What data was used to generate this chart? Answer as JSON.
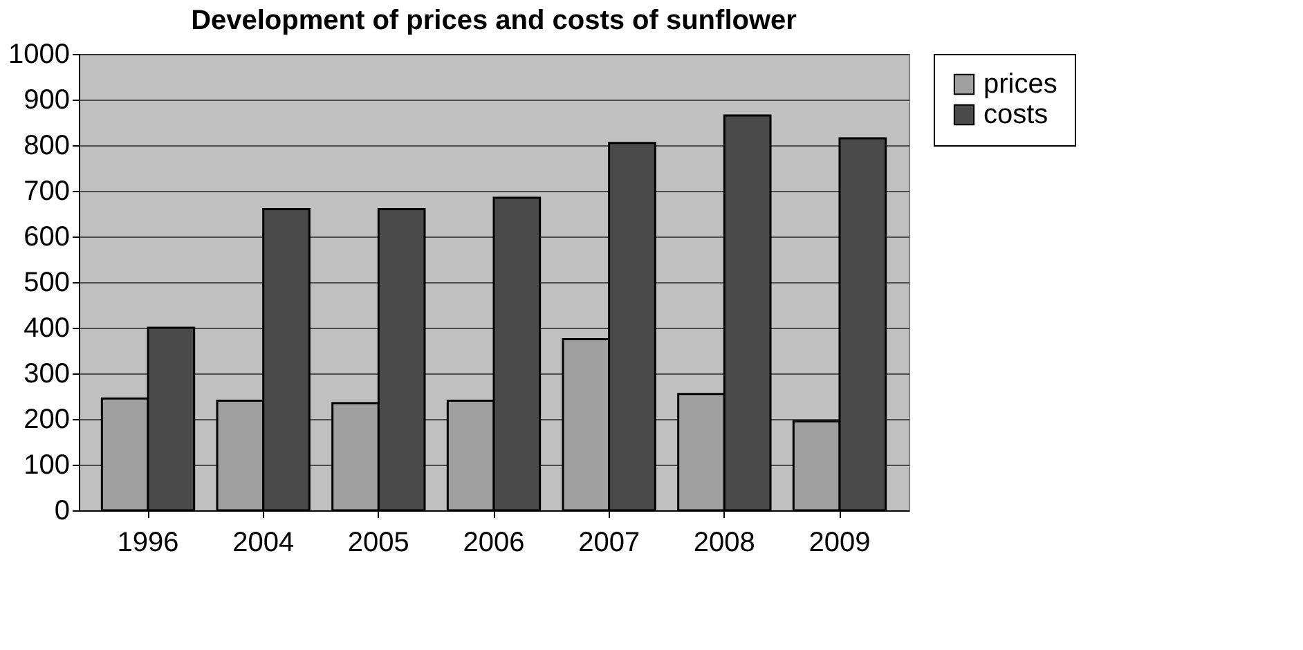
{
  "chart_data": {
    "type": "bar",
    "title": "Development of prices and costs of sunflower",
    "categories": [
      "1996",
      "2004",
      "2005",
      "2006",
      "2007",
      "2008",
      "2009"
    ],
    "series": [
      {
        "name": "prices",
        "color": "#a0a0a0",
        "values": [
          245,
          240,
          235,
          240,
          375,
          255,
          195
        ]
      },
      {
        "name": "costs",
        "color": "#4a4a4a",
        "values": [
          400,
          660,
          660,
          685,
          805,
          865,
          815
        ]
      }
    ],
    "ylim": [
      0,
      1000
    ],
    "yticks": [
      0,
      100,
      200,
      300,
      400,
      500,
      600,
      700,
      800,
      900,
      1000
    ],
    "grid": "y",
    "legend": "right"
  }
}
